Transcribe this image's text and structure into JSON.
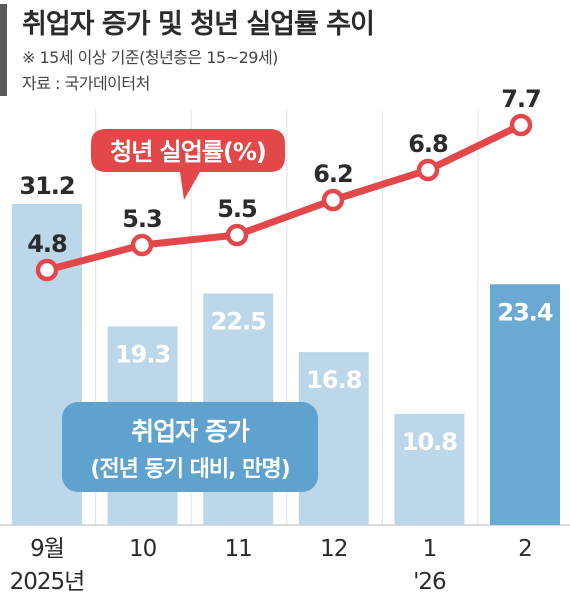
{
  "header": {
    "title": "취업자 증가 및 청년 실업률 추이",
    "note": "※ 15세 이상 기준(청년층은 15~29세)",
    "source": "자료 : 국가데이터처"
  },
  "colors": {
    "bar_light": "#bcd6ea",
    "bar_highlight": "#6aa9d2",
    "line": "#e2474a",
    "bar_label_box": "#5fa2cd"
  },
  "chart_data": {
    "type": "bar",
    "categories": [
      "9월",
      "10",
      "11",
      "12",
      "1",
      "2"
    ],
    "year_labels": [
      "2025년",
      "",
      "",
      "",
      "'26",
      ""
    ],
    "series": [
      {
        "name": "취업자 증가",
        "unit_label": "(전년 동기 대비, 만명)",
        "type": "bar",
        "values": [
          31.2,
          19.3,
          22.5,
          16.8,
          10.8,
          23.4
        ],
        "value_labels": [
          "31.2",
          "19.3",
          "22.5",
          "16.8",
          "10.8",
          "23.4"
        ],
        "highlight_index": 5
      },
      {
        "name": "청년 실업률(%)",
        "type": "line",
        "values": [
          4.8,
          5.3,
          5.5,
          6.2,
          6.8,
          7.7
        ],
        "value_labels": [
          "4.8",
          "5.3",
          "5.5",
          "6.2",
          "6.8",
          "7.7"
        ]
      }
    ],
    "bar_range": [
      0,
      40
    ],
    "line_range": [
      2.2,
      9.2
    ],
    "grid": true,
    "legend": "inline"
  }
}
